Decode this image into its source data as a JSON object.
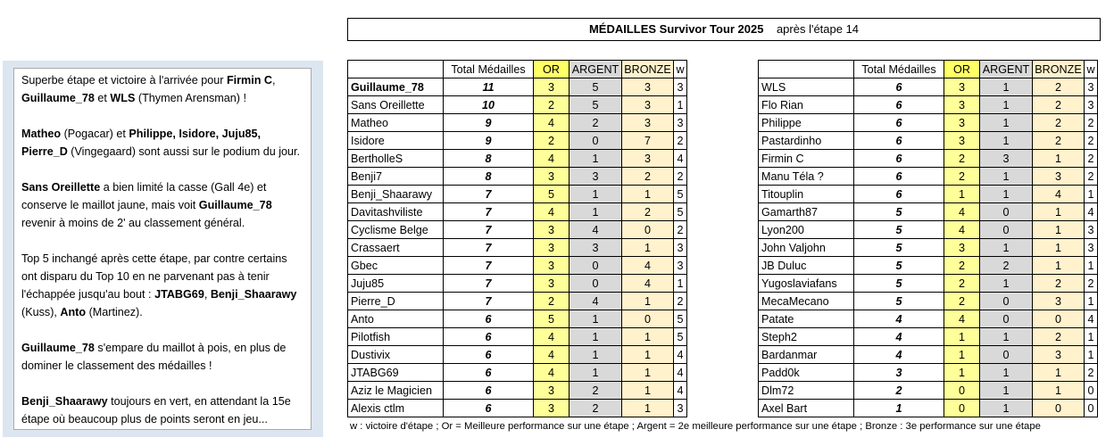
{
  "title": {
    "main": "MÉDAILLES Survivor Tour 2025",
    "sub": "après l'étape 14"
  },
  "commentary": [
    [
      {
        "text": "Superbe étape et victoire à l'arrivée pour "
      },
      {
        "text": "Firmin C",
        "bold": true
      },
      {
        "text": ", "
      },
      {
        "text": "Guillaume_78",
        "bold": true
      },
      {
        "text": " et "
      },
      {
        "text": "WLS",
        "bold": true
      },
      {
        "text": " (Thymen Arensman) !"
      }
    ],
    [
      {
        "text": "Matheo",
        "bold": true
      },
      {
        "text": " (Pogacar) et "
      },
      {
        "text": "Philippe, Isidore, Juju85, Pierre_D",
        "bold": true
      },
      {
        "text": " (Vingegaard) sont aussi sur le podium du jour."
      }
    ],
    [
      {
        "text": "Sans Oreillette",
        "bold": true
      },
      {
        "text": " a bien limité la casse (Gall 4e) et conserve le maillot jaune, mais voit "
      },
      {
        "text": "Guillaume_78",
        "bold": true
      },
      {
        "text": " revenir à moins de 2' au classement général."
      }
    ],
    [
      {
        "text": "Top 5 inchangé après cette étape, par contre certains ont disparu du Top 10 en ne parvenant pas à tenir l'échappée jusqu'au bout : "
      },
      {
        "text": "JTABG69",
        "bold": true
      },
      {
        "text": ", "
      },
      {
        "text": "Benji_Shaarawy",
        "bold": true
      },
      {
        "text": " (Kuss), "
      },
      {
        "text": "Anto",
        "bold": true
      },
      {
        "text": " (Martinez)."
      }
    ],
    [
      {
        "text": "Guillaume_78",
        "bold": true
      },
      {
        "text": " s'empare du maillot à pois, en plus de dominer le classement des médailles !"
      }
    ],
    [
      {
        "text": "Benji_Shaarawy",
        "bold": true
      },
      {
        "text": " toujours en vert, en attendant la 15e étape où beaucoup plus de points seront en jeu..."
      }
    ]
  ],
  "headers": [
    "Total Médailles",
    "OR",
    "ARGENT",
    "BRONZE",
    "w"
  ],
  "tables": [
    {
      "bold_rows": [
        0
      ],
      "rows": [
        [
          "Guillaume_78",
          11,
          3,
          5,
          3,
          3
        ],
        [
          "Sans Oreillette",
          10,
          2,
          5,
          3,
          1
        ],
        [
          "Matheo",
          9,
          4,
          2,
          3,
          3
        ],
        [
          "Isidore",
          9,
          2,
          0,
          7,
          2
        ],
        [
          "BertholleS",
          8,
          4,
          1,
          3,
          4
        ],
        [
          "Benji7",
          8,
          3,
          3,
          2,
          2
        ],
        [
          "Benji_Shaarawy",
          7,
          5,
          1,
          1,
          5
        ],
        [
          "Davitashviliste",
          7,
          4,
          1,
          2,
          5
        ],
        [
          "Cyclisme Belge",
          7,
          3,
          4,
          0,
          2
        ],
        [
          "Crassaert",
          7,
          3,
          3,
          1,
          3
        ],
        [
          "Gbec",
          7,
          3,
          0,
          4,
          3
        ],
        [
          "Juju85",
          7,
          3,
          0,
          4,
          1
        ],
        [
          "Pierre_D",
          7,
          2,
          4,
          1,
          2
        ],
        [
          "Anto",
          6,
          5,
          1,
          0,
          5
        ],
        [
          "Pilotfish",
          6,
          4,
          1,
          1,
          5
        ],
        [
          "Dustivix",
          6,
          4,
          1,
          1,
          4
        ],
        [
          "JTABG69",
          6,
          4,
          1,
          1,
          4
        ],
        [
          "Aziz le Magicien",
          6,
          3,
          2,
          1,
          4
        ],
        [
          "Alexis ctlm",
          6,
          3,
          2,
          1,
          3
        ]
      ]
    },
    {
      "bold_rows": [],
      "rows": [
        [
          "WLS",
          6,
          3,
          1,
          2,
          3
        ],
        [
          "Flo Rian",
          6,
          3,
          1,
          2,
          3
        ],
        [
          "Philippe",
          6,
          3,
          1,
          2,
          2
        ],
        [
          "Pastardinho",
          6,
          3,
          1,
          2,
          2
        ],
        [
          "Firmin C",
          6,
          2,
          3,
          1,
          2
        ],
        [
          "Manu Téla ?",
          6,
          2,
          1,
          3,
          2
        ],
        [
          "Titouplin",
          6,
          1,
          1,
          4,
          1
        ],
        [
          "Gamarth87",
          5,
          4,
          0,
          1,
          4
        ],
        [
          "Lyon200",
          5,
          4,
          0,
          1,
          3
        ],
        [
          "John Valjohn",
          5,
          3,
          1,
          1,
          3
        ],
        [
          "JB Duluc",
          5,
          2,
          2,
          1,
          1
        ],
        [
          "Yugoslaviafans",
          5,
          2,
          1,
          2,
          2
        ],
        [
          "MecaMecano",
          5,
          2,
          0,
          3,
          1
        ],
        [
          "Patate",
          4,
          4,
          0,
          0,
          4
        ],
        [
          "Steph2",
          4,
          1,
          1,
          2,
          1
        ],
        [
          "Bardanmar",
          4,
          1,
          0,
          3,
          1
        ],
        [
          "Padd0k",
          3,
          1,
          1,
          1,
          2
        ],
        [
          "Dlm72",
          2,
          0,
          1,
          1,
          0
        ],
        [
          "Axel Bart",
          1,
          0,
          1,
          0,
          0
        ]
      ]
    }
  ],
  "footnote": "w : victoire d'étape ; Or = Meilleure performance sur une étape ; Argent = 2e meilleure performance sur une étape ; Bronze : 3e performance sur une étape"
}
